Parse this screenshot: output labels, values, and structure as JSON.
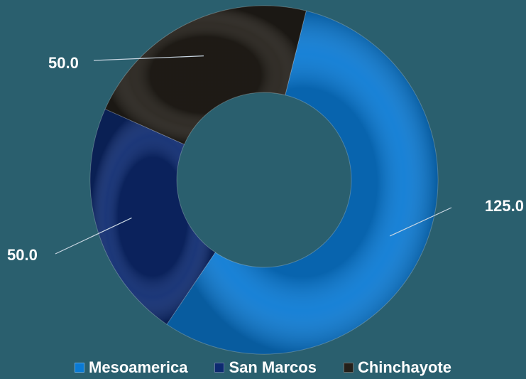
{
  "chart_data": {
    "type": "pie",
    "subtype": "donut",
    "title": "",
    "legend_position": "bottom",
    "series": [
      {
        "values": [
          125.0,
          50.0,
          50.0
        ],
        "labels": [
          "125.0",
          "50.0",
          "50.0"
        ]
      }
    ],
    "categories": [
      "Mesoamerica",
      "San Marcos",
      "Chinchayote"
    ],
    "colors": [
      "#0a7ad4",
      "#0d2a70",
      "#24201a"
    ],
    "background": "#2a5f6e"
  }
}
